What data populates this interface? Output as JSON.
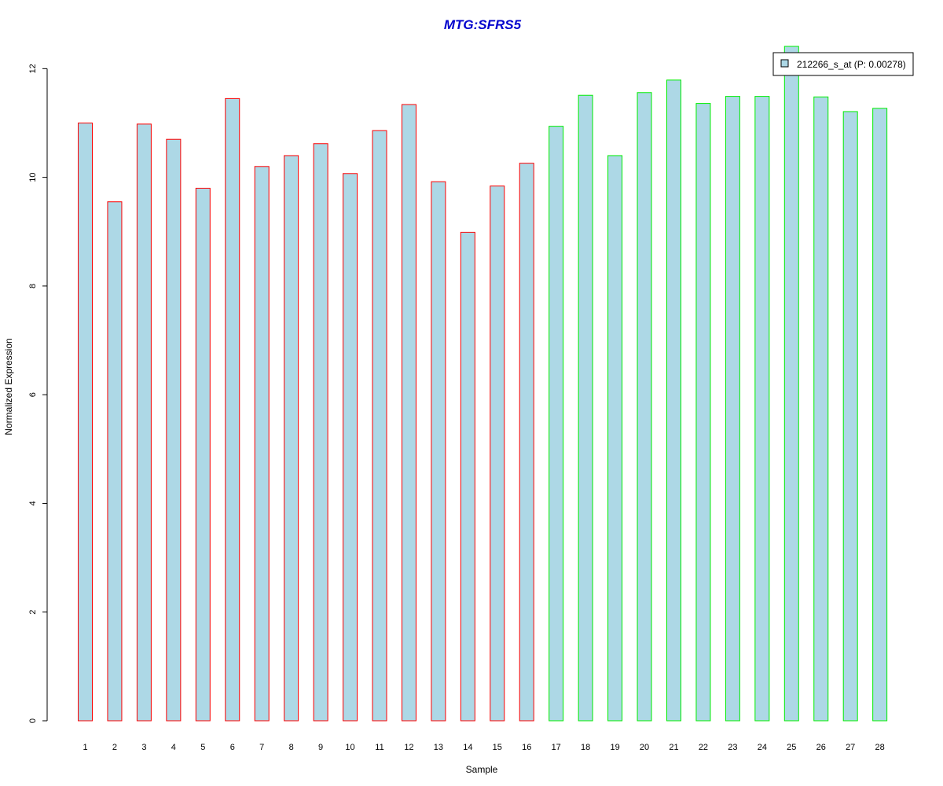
{
  "chart_data": {
    "type": "bar",
    "title": "MTG:SFRS5",
    "xlabel": "Sample",
    "ylabel": "Normalized Expression",
    "categories": [
      "1",
      "2",
      "3",
      "4",
      "5",
      "6",
      "7",
      "8",
      "9",
      "10",
      "11",
      "12",
      "13",
      "14",
      "15",
      "16",
      "17",
      "18",
      "19",
      "20",
      "21",
      "22",
      "23",
      "24",
      "25",
      "26",
      "27",
      "28"
    ],
    "series": [
      {
        "name": "212266_s_at (P: 0.00278)",
        "values": [
          11.0,
          9.55,
          10.98,
          10.7,
          9.8,
          11.45,
          10.2,
          10.4,
          10.62,
          10.07,
          10.86,
          11.34,
          9.92,
          8.99,
          9.84,
          10.26,
          10.94,
          11.51,
          10.4,
          11.56,
          11.79,
          11.36,
          11.49,
          11.49,
          12.41,
          11.48,
          11.21,
          11.27
        ]
      }
    ],
    "groups": [
      {
        "border_color": "#ff0000",
        "from": 1,
        "to": 16
      },
      {
        "border_color": "#00ee00",
        "from": 17,
        "to": 28
      }
    ],
    "yticks": [
      0,
      2,
      4,
      6,
      8,
      10,
      12
    ],
    "ylim": [
      0,
      12.41
    ],
    "legend_position": "top-right",
    "colors": {
      "bar_fill": "#add8e6",
      "title": "#0000cd",
      "group1_border": "#ff0000",
      "group2_border": "#00ee00"
    }
  }
}
